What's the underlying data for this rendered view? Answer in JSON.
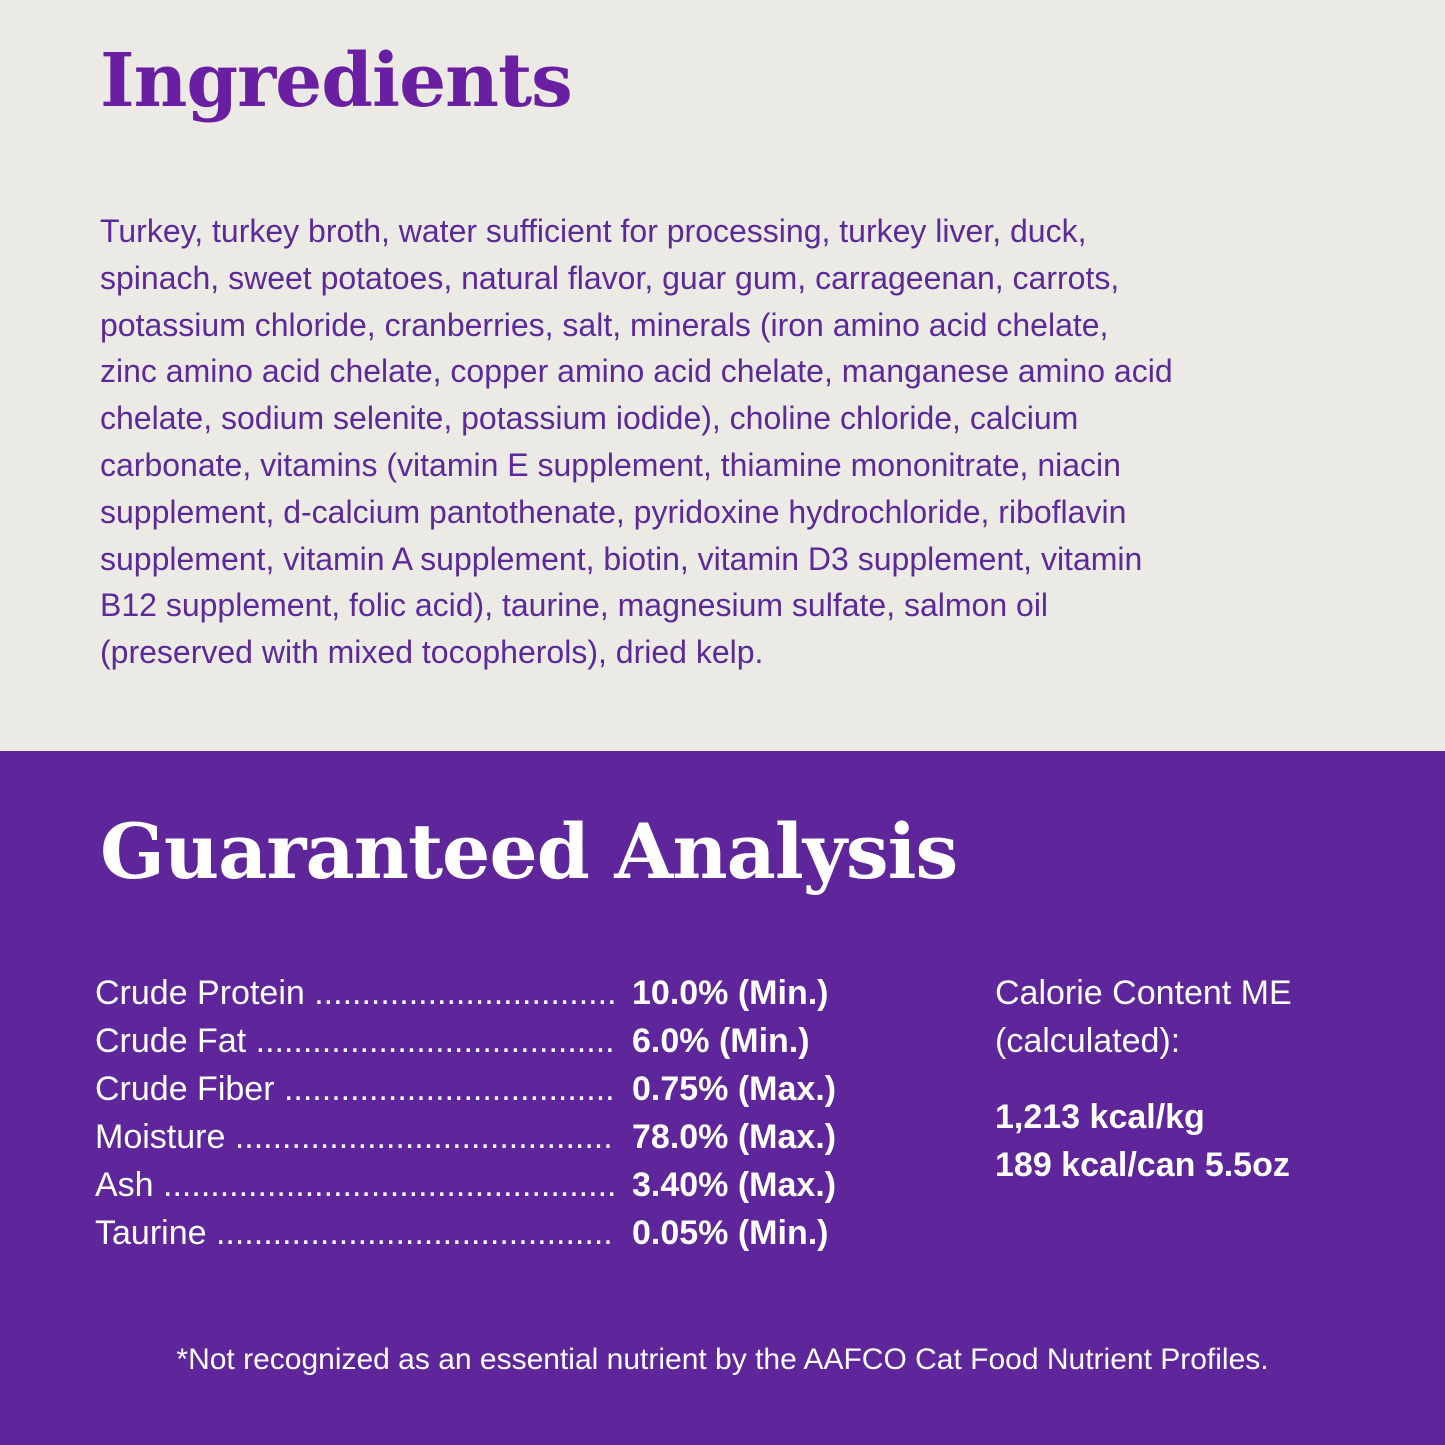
{
  "ingredients": {
    "title": "Ingredients",
    "lines": [
      "Turkey, turkey broth, water sufficient for processing, turkey liver, duck,",
      "spinach, sweet potatoes, natural flavor, guar gum, carrageenan, carrots,",
      "potassium chloride, cranberries, salt, minerals (iron amino acid chelate,",
      "zinc amino acid chelate, copper amino acid chelate, manganese amino acid",
      "chelate, sodium selenite, potassium iodide), choline chloride, calcium",
      "carbonate, vitamins (vitamin E supplement, thiamine mononitrate, niacin",
      "supplement, d-calcium pantothenate, pyridoxine hydrochloride, riboflavin",
      "supplement, vitamin A supplement, biotin, vitamin D3 supplement, vitamin",
      "B12 supplement, folic acid), taurine, magnesium sulfate, salmon oil",
      "(preserved with mixed tocopherols), dried kelp."
    ]
  },
  "analysis": {
    "title": "Guaranteed Analysis",
    "rows": [
      {
        "label": "Crude Protein",
        "value": "10.0% (Min.)"
      },
      {
        "label": "Crude Fat",
        "value": "6.0% (Min.)"
      },
      {
        "label": "Crude Fiber",
        "value": "0.75% (Max.)"
      },
      {
        "label": "Moisture",
        "value": "78.0% (Max.)"
      },
      {
        "label": "Ash",
        "value": "3.40% (Max.)"
      },
      {
        "label": "Taurine",
        "value": "0.05% (Min.)"
      }
    ],
    "calorie": {
      "label_line1": "Calorie Content ME",
      "label_line2": "(calculated):",
      "per_kg": "1,213 kcal/kg",
      "per_can": "189 kcal/can 5.5oz"
    },
    "footnote": "*Not recognized as an essential nutrient by the AAFCO Cat Food Nutrient Profiles."
  },
  "colors": {
    "background": "#eceae4",
    "panel": "#5f259b",
    "heading": "#6a1fa3",
    "body_text": "#5b2a98"
  }
}
